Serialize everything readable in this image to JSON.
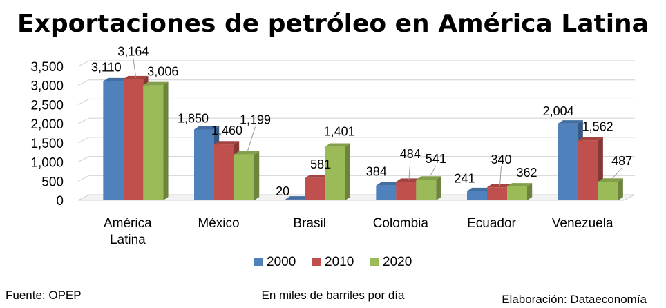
{
  "chart_data": {
    "type": "bar",
    "title": "Exportaciones de petróleo en América Latina",
    "categories": [
      [
        "América",
        "Latina"
      ],
      [
        "México"
      ],
      [
        "Brasil"
      ],
      [
        "Colombia"
      ],
      [
        "Ecuador"
      ],
      [
        "Venezuela"
      ]
    ],
    "series": [
      {
        "name": "2000",
        "color": "#4F81BD",
        "values": [
          3110,
          1850,
          20,
          384,
          241,
          2004
        ],
        "labels": [
          "3,110",
          "1,850",
          "20",
          "384",
          "241",
          "2,004"
        ]
      },
      {
        "name": "2010",
        "color": "#C0504D",
        "values": [
          3164,
          1460,
          581,
          484,
          340,
          1562
        ],
        "labels": [
          "3,164",
          "1,460",
          "581",
          "484",
          "340",
          "1,562"
        ]
      },
      {
        "name": "2020",
        "color": "#9BBB59",
        "values": [
          3006,
          1199,
          1401,
          541,
          362,
          487
        ],
        "labels": [
          "3,006",
          "1,199",
          "1,401",
          "541",
          "362",
          "487"
        ]
      }
    ],
    "yticks": [
      "0",
      "500",
      "1,000",
      "1,500",
      "2,000",
      "2,500",
      "3,000",
      "3,500"
    ],
    "ylim": [
      0,
      3500
    ],
    "grid": true,
    "legend": "bottom",
    "unit_note": "En miles de barriles por día"
  },
  "footer": {
    "source": "Fuente: OPEP",
    "credit": "Elaboración: Dataeconomía"
  }
}
